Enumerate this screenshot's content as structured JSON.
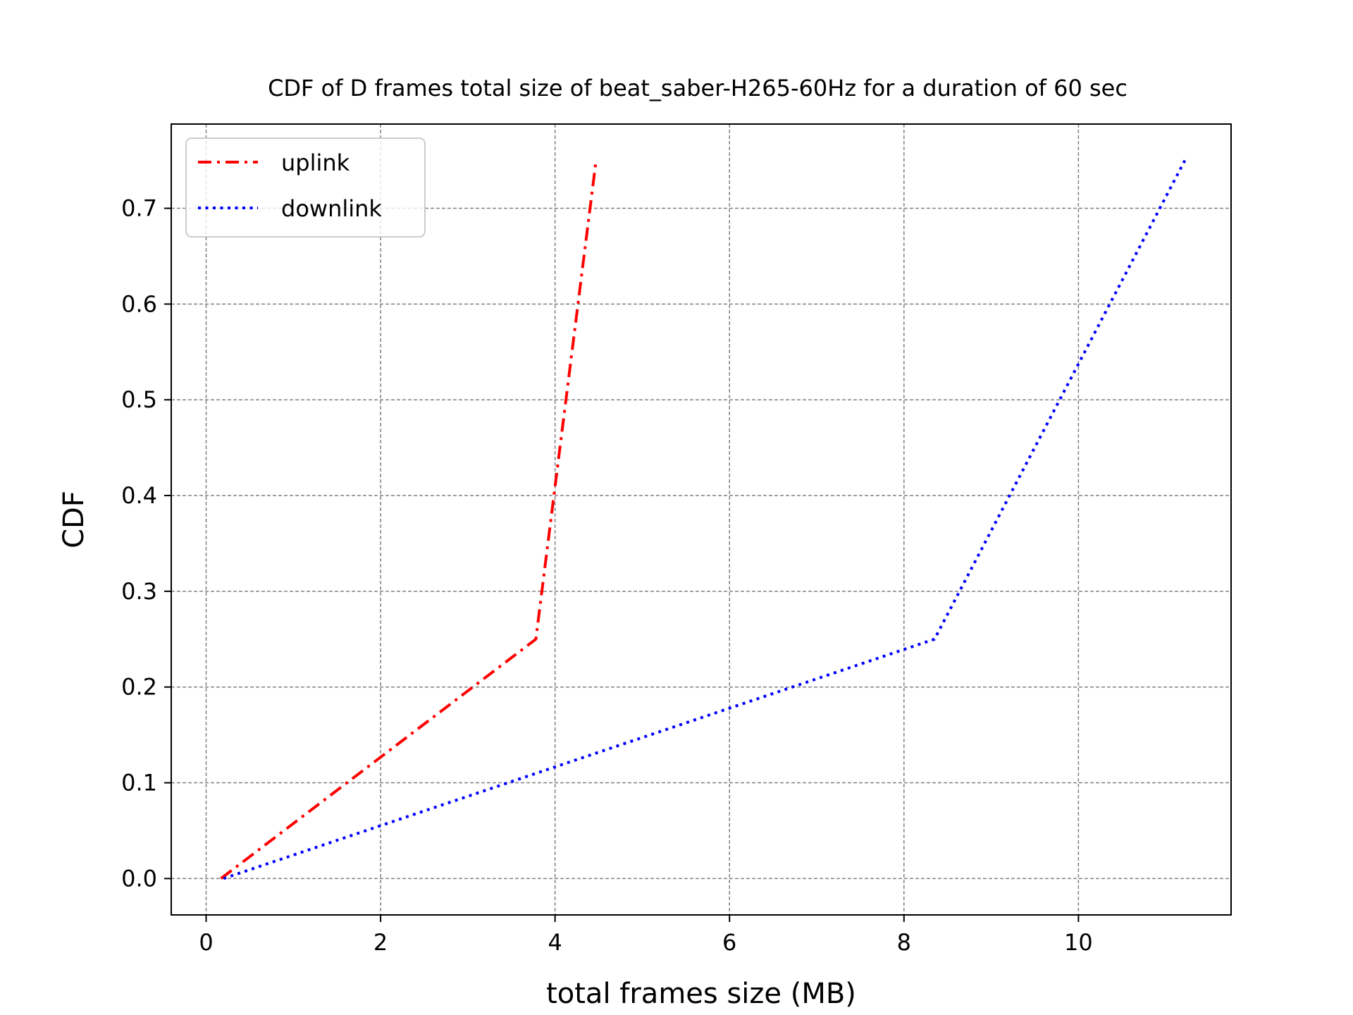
{
  "chart_data": {
    "type": "line",
    "title": "CDF of D frames total size of beat_saber-H265-60Hz for a duration of 60 sec",
    "xlabel": "total frames size (MB)",
    "ylabel": "CDF",
    "xlim": [
      -0.4,
      11.75
    ],
    "ylim": [
      -0.038,
      0.788
    ],
    "xticks": [
      0,
      2,
      4,
      6,
      8,
      10
    ],
    "yticks": [
      0.0,
      0.1,
      0.2,
      0.3,
      0.4,
      0.5,
      0.6,
      0.7
    ],
    "grid": true,
    "legend_position": "upper left",
    "series": [
      {
        "name": "uplink",
        "color": "#ff0000",
        "style": "dashdot",
        "x": [
          0.17,
          3.78,
          4.47
        ],
        "y": [
          0.0,
          0.25,
          0.75
        ]
      },
      {
        "name": "downlink",
        "color": "#0000ff",
        "style": "dotted",
        "x": [
          0.2,
          8.35,
          11.22
        ],
        "y": [
          0.0,
          0.25,
          0.75
        ]
      }
    ]
  }
}
